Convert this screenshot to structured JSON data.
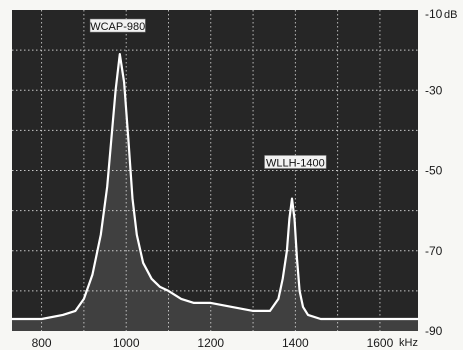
{
  "chart_data": {
    "type": "line",
    "title": "",
    "xlabel": "",
    "ylabel": "",
    "x_unit": "kHz",
    "y_unit": "dB",
    "xlim": [
      730,
      1690
    ],
    "ylim": [
      -90,
      -10
    ],
    "x_ticks": [
      800,
      1000,
      1200,
      1400,
      1600
    ],
    "y_ticks": [
      -10,
      -30,
      -50,
      -70,
      -90
    ],
    "x_tick_labels": [
      "800",
      "1000",
      "1200",
      "1400",
      "1600"
    ],
    "y_tick_labels": [
      "-10",
      "-30",
      "-50",
      "-70",
      "-90"
    ],
    "y_tick_first_suffix": "dB",
    "x_axis_suffix": "kHz",
    "grid": true,
    "legend": "none",
    "colors": {
      "background": "#262626",
      "trace": "#ffffff",
      "grid": "#c8c8c8",
      "label_box": "#f2f2f2"
    },
    "series": [
      {
        "x": [
          730,
          800,
          850,
          880,
          900,
          920,
          940,
          955,
          965,
          975,
          985,
          995,
          1005,
          1015,
          1025,
          1040,
          1060,
          1080,
          1100,
          1130,
          1160,
          1200,
          1250,
          1300,
          1340,
          1360,
          1370,
          1380,
          1386,
          1392,
          1398,
          1404,
          1410,
          1418,
          1430,
          1460,
          1500,
          1550,
          1600,
          1650,
          1690
        ],
        "values": [
          -87,
          -87,
          -86,
          -85,
          -82,
          -76,
          -66,
          -54,
          -42,
          -30,
          -21,
          -28,
          -42,
          -57,
          -66,
          -73,
          -77,
          -79,
          -80,
          -82,
          -83,
          -83,
          -84,
          -85,
          -85,
          -82,
          -77,
          -70,
          -62,
          -57,
          -62,
          -72,
          -80,
          -84,
          -86,
          -87,
          -87,
          -87,
          -87,
          -87,
          -87
        ]
      }
    ],
    "annotations": [
      {
        "text": "WCAP-980",
        "x": 980,
        "y": -14
      },
      {
        "text": "WLLH-1400",
        "x": 1400,
        "y": -48
      }
    ]
  }
}
